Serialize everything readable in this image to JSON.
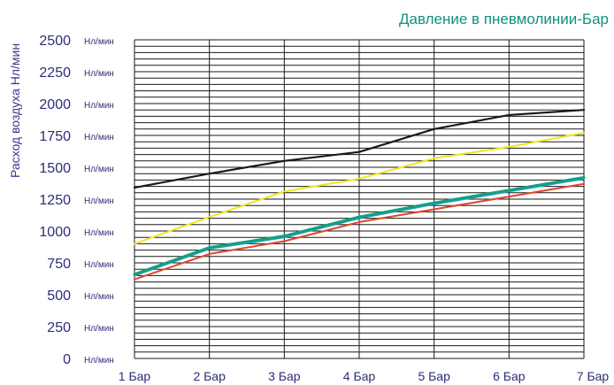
{
  "chart_data": {
    "type": "line",
    "title": "Давление в пневмолинии-Бар",
    "ylabel": "Расход воздуха Нл/мин",
    "xlabel": "",
    "y_unit": "Нл/мин",
    "ylim": [
      0,
      2500
    ],
    "y_ticks": [
      {
        "value": 0,
        "label": "0"
      },
      {
        "value": 250,
        "label": "250"
      },
      {
        "value": 500,
        "label": "500"
      },
      {
        "value": 750,
        "label": "750"
      },
      {
        "value": 1000,
        "label": "1000"
      },
      {
        "value": 1250,
        "label": "1250"
      },
      {
        "value": 1500,
        "label": "1500"
      },
      {
        "value": 1750,
        "label": "1750"
      },
      {
        "value": 2000,
        "label": "2000"
      },
      {
        "value": 2250,
        "label": "2250"
      },
      {
        "value": 2500,
        "label": "2500"
      }
    ],
    "categories": [
      "1 Бар",
      "2 Бар",
      "3 Бар",
      "4 Бар",
      "5 Бар",
      "6 Бар",
      "7 Бар"
    ],
    "grid": true,
    "series": [
      {
        "color": "#1a1a1a",
        "width": 2.2,
        "values": [
          1340,
          1450,
          1550,
          1620,
          1800,
          1910,
          1950
        ]
      },
      {
        "color": "#f2e41c",
        "width": 2.0,
        "values": [
          900,
          1110,
          1310,
          1410,
          1570,
          1660,
          1770
        ]
      },
      {
        "color": "#e0462a",
        "width": 2.0,
        "values": [
          620,
          820,
          920,
          1070,
          1170,
          1270,
          1370
        ]
      },
      {
        "color": "#2a9fd6",
        "width": 2.0,
        "values": [
          650,
          860,
          950,
          1100,
          1210,
          1310,
          1410
        ]
      },
      {
        "color": "#14a07e",
        "width": 3.2,
        "values": [
          660,
          870,
          960,
          1110,
          1220,
          1320,
          1420
        ]
      }
    ]
  }
}
